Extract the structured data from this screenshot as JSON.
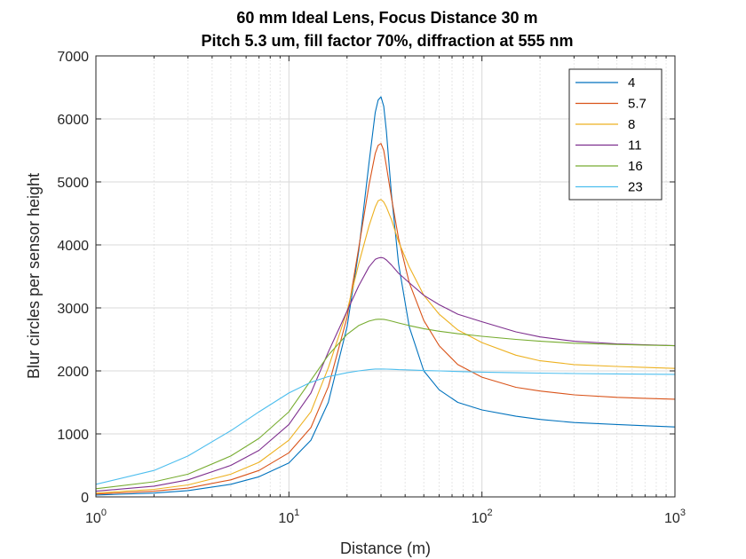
{
  "chart_data": {
    "type": "line",
    "title_lines": [
      "60 mm Ideal Lens, Focus Distance 30 m",
      "Pitch 5.3 um, fill factor 70%, diffraction at 555 nm"
    ],
    "xlabel": "Distance (m)",
    "ylabel": "Blur circles per sensor height",
    "xscale": "log",
    "xlim": [
      1,
      1000
    ],
    "ylim": [
      0,
      7000
    ],
    "xticks": [
      1,
      10,
      100,
      1000
    ],
    "xtick_labels": [
      {
        "base": "10",
        "exp": "0"
      },
      {
        "base": "10",
        "exp": "1"
      },
      {
        "base": "10",
        "exp": "2"
      },
      {
        "base": "10",
        "exp": "3"
      }
    ],
    "yticks": [
      0,
      1000,
      2000,
      3000,
      4000,
      5000,
      6000,
      7000
    ],
    "ytick_labels": [
      "0",
      "1000",
      "2000",
      "3000",
      "4000",
      "5000",
      "6000",
      "7000"
    ],
    "grid": true,
    "legend_position": "top-right",
    "x": [
      1,
      2,
      3,
      5,
      7,
      10,
      13,
      16,
      20,
      23,
      26,
      28,
      29,
      30,
      31,
      32,
      34,
      37,
      42,
      50,
      60,
      75,
      100,
      150,
      200,
      300,
      500,
      700,
      1000
    ],
    "series": [
      {
        "name": "4",
        "color": "#0072BD",
        "values": [
          30,
          60,
          100,
          200,
          320,
          540,
          900,
          1500,
          2700,
          3900,
          5300,
          6100,
          6300,
          6350,
          6200,
          5800,
          4800,
          3700,
          2700,
          2000,
          1700,
          1500,
          1380,
          1280,
          1230,
          1180,
          1150,
          1130,
          1110
        ]
      },
      {
        "name": "5.7",
        "color": "#D95319",
        "values": [
          45,
          90,
          140,
          270,
          420,
          700,
          1100,
          1750,
          2850,
          3950,
          4950,
          5450,
          5580,
          5610,
          5500,
          5250,
          4750,
          4100,
          3400,
          2800,
          2400,
          2100,
          1900,
          1740,
          1680,
          1620,
          1580,
          1565,
          1550
        ]
      },
      {
        "name": "8",
        "color": "#EDB120",
        "values": [
          60,
          120,
          190,
          360,
          550,
          900,
          1350,
          2050,
          2950,
          3700,
          4300,
          4600,
          4700,
          4720,
          4680,
          4600,
          4400,
          4050,
          3650,
          3200,
          2900,
          2650,
          2450,
          2250,
          2160,
          2100,
          2070,
          2055,
          2040
        ]
      },
      {
        "name": "11",
        "color": "#7E2F8E",
        "values": [
          90,
          170,
          270,
          500,
          740,
          1150,
          1650,
          2300,
          2950,
          3350,
          3650,
          3770,
          3790,
          3800,
          3790,
          3760,
          3680,
          3550,
          3400,
          3200,
          3050,
          2900,
          2780,
          2620,
          2540,
          2470,
          2430,
          2415,
          2400
        ]
      },
      {
        "name": "16",
        "color": "#77AC30",
        "values": [
          130,
          240,
          360,
          650,
          930,
          1350,
          1850,
          2250,
          2580,
          2720,
          2790,
          2815,
          2820,
          2820,
          2818,
          2810,
          2790,
          2760,
          2720,
          2670,
          2630,
          2590,
          2550,
          2500,
          2470,
          2440,
          2420,
          2410,
          2400
        ]
      },
      {
        "name": "23",
        "color": "#4DBEEE",
        "values": [
          200,
          420,
          650,
          1050,
          1350,
          1650,
          1820,
          1910,
          1970,
          2000,
          2020,
          2030,
          2030,
          2030,
          2030,
          2028,
          2025,
          2020,
          2015,
          2005,
          2000,
          1990,
          1980,
          1970,
          1965,
          1958,
          1952,
          1948,
          1945
        ]
      }
    ]
  }
}
